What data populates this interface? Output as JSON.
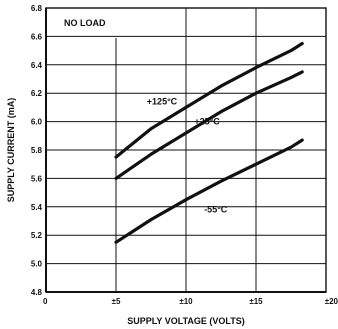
{
  "chart_data": {
    "type": "line",
    "title": "",
    "xlabel": "SUPPLY VOLTAGE (VOLTS)",
    "ylabel": "SUPPLY CURRENT (mA)",
    "xlim": [
      0,
      20
    ],
    "ylim": [
      4.8,
      6.8
    ],
    "x_ticks": [
      {
        "value": 0,
        "label": "0"
      },
      {
        "value": 5,
        "label": "±5"
      },
      {
        "value": 10,
        "label": "±10"
      },
      {
        "value": 15,
        "label": "±15"
      },
      {
        "value": 20,
        "label": "±20"
      }
    ],
    "y_ticks": [
      {
        "value": 4.8,
        "label": "4.8"
      },
      {
        "value": 5.0,
        "label": "5.0"
      },
      {
        "value": 5.2,
        "label": "5.2"
      },
      {
        "value": 5.4,
        "label": "5.4"
      },
      {
        "value": 5.6,
        "label": "5.6"
      },
      {
        "value": 5.8,
        "label": "5.8"
      },
      {
        "value": 6.0,
        "label": "6.0"
      },
      {
        "value": 6.2,
        "label": "6.2"
      },
      {
        "value": 6.4,
        "label": "6.4"
      },
      {
        "value": 6.6,
        "label": "6.6"
      },
      {
        "value": 6.8,
        "label": "6.8"
      }
    ],
    "grid": true,
    "annotation": "NO LOAD",
    "series": [
      {
        "name": "+125°C",
        "x": [
          5,
          7.5,
          10,
          12.5,
          15,
          17.5,
          18.3
        ],
        "values": [
          5.75,
          5.95,
          6.1,
          6.25,
          6.38,
          6.5,
          6.55
        ]
      },
      {
        "name": "+25°C",
        "x": [
          5,
          7.5,
          10,
          12.5,
          15,
          17.5,
          18.3
        ],
        "values": [
          5.6,
          5.77,
          5.92,
          6.07,
          6.2,
          6.31,
          6.35
        ]
      },
      {
        "name": "-55°C",
        "x": [
          5,
          7.5,
          10,
          12.5,
          15,
          17.5,
          18.3
        ],
        "values": [
          5.15,
          5.31,
          5.45,
          5.58,
          5.7,
          5.82,
          5.87
        ]
      }
    ]
  }
}
